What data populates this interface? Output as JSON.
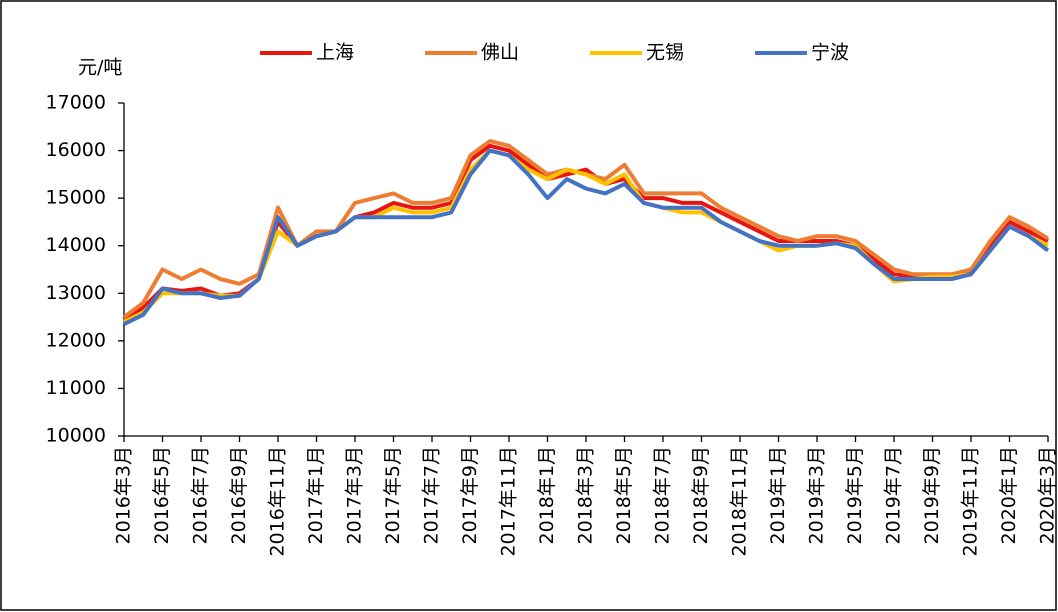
{
  "chart_data": {
    "type": "line",
    "y_label": "元/吨",
    "categories": [
      "2016年3月",
      null,
      "2016年5月",
      null,
      "2016年7月",
      null,
      "2016年9月",
      null,
      "2016年11月",
      null,
      "2017年1月",
      null,
      "2017年3月",
      null,
      "2017年5月",
      null,
      "2017年7月",
      null,
      "2017年9月",
      null,
      "2017年11月",
      null,
      "2018年1月",
      null,
      "2018年3月",
      null,
      "2018年5月",
      null,
      "2018年7月",
      null,
      "2018年9月",
      null,
      "2018年11月",
      null,
      "2019年1月",
      null,
      "2019年3月",
      null,
      "2019年5月",
      null,
      "2019年7月",
      null,
      "2019年9月",
      null,
      "2019年11月",
      null,
      "2020年1月",
      null,
      "2020年3月"
    ],
    "series": [
      {
        "name": "上海",
        "color": "#e8150e",
        "values": [
          12450,
          12700,
          13100,
          13050,
          13100,
          12950,
          13000,
          13300,
          14500,
          14000,
          14200,
          14300,
          14600,
          14700,
          14900,
          14800,
          14800,
          14900,
          15800,
          16100,
          16000,
          15700,
          15400,
          15500,
          15600,
          15300,
          15400,
          15000,
          15000,
          14900,
          14900,
          14700,
          14500,
          14300,
          14100,
          14100,
          14100,
          14100,
          14000,
          13700,
          13400,
          13350,
          13350,
          13350,
          13450,
          14000,
          14500,
          14300,
          14100
        ]
      },
      {
        "name": "佛山",
        "color": "#ed7d31",
        "values": [
          12500,
          12800,
          13500,
          13300,
          13500,
          13300,
          13200,
          13400,
          14800,
          14000,
          14300,
          14300,
          14900,
          15000,
          15100,
          14900,
          14900,
          15000,
          15900,
          16200,
          16100,
          15800,
          15500,
          15600,
          15500,
          15400,
          15700,
          15100,
          15100,
          15100,
          15100,
          14800,
          14600,
          14400,
          14200,
          14100,
          14200,
          14200,
          14100,
          13800,
          13500,
          13400,
          13400,
          13400,
          13500,
          14100,
          14600,
          14400,
          14150
        ]
      },
      {
        "name": "无锡",
        "color": "#ffc000",
        "values": [
          12400,
          12600,
          13000,
          13000,
          13000,
          12950,
          12950,
          13300,
          14300,
          14000,
          14200,
          14300,
          14600,
          14600,
          14800,
          14700,
          14700,
          14800,
          15600,
          16000,
          15900,
          15600,
          15400,
          15600,
          15500,
          15300,
          15500,
          14900,
          14800,
          14700,
          14700,
          14500,
          14300,
          14100,
          13900,
          14000,
          14000,
          14050,
          14000,
          13600,
          13250,
          13300,
          13350,
          13350,
          13400,
          13900,
          14400,
          14200,
          14000
        ]
      },
      {
        "name": "宁波",
        "color": "#4472c4",
        "values": [
          12350,
          12550,
          13100,
          13000,
          13000,
          12900,
          12950,
          13300,
          14600,
          14000,
          14200,
          14300,
          14600,
          14600,
          14600,
          14600,
          14600,
          14700,
          15500,
          16000,
          15900,
          15500,
          15000,
          15400,
          15200,
          15100,
          15300,
          14900,
          14800,
          14800,
          14800,
          14500,
          14300,
          14100,
          14000,
          14000,
          14000,
          14050,
          13950,
          13600,
          13300,
          13300,
          13300,
          13300,
          13400,
          13900,
          14400,
          14200,
          13900
        ]
      }
    ],
    "ylim": [
      10000,
      17000
    ],
    "yticks": [
      10000,
      11000,
      12000,
      13000,
      14000,
      15000,
      16000,
      17000
    ]
  }
}
